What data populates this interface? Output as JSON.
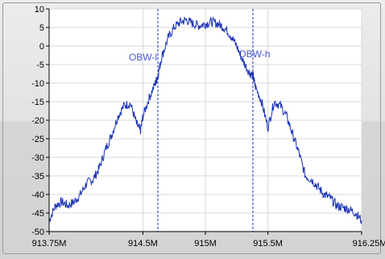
{
  "colors": {
    "plot_background": "#ffffff",
    "grid": "#d8d8d8",
    "trace": "#1a32b4",
    "markers": "#1a32b4",
    "marker_label": "#4b5ad2",
    "axis": "#000000",
    "panel": "#e3e3e3"
  },
  "chart_data": {
    "type": "line",
    "title": "",
    "xlabel": "",
    "ylabel": "",
    "x_unit_note_hidden": "",
    "xlim": [
      913.75,
      916.25
    ],
    "ylim": [
      -50,
      10
    ],
    "x_ticks": [
      913.75,
      914.5,
      915,
      915.5,
      916.25
    ],
    "x_tick_labels": [
      "913.75M",
      "914.5M",
      "915M",
      "915.5M",
      "916.25M"
    ],
    "y_ticks": [
      10,
      5,
      0,
      -5,
      -10,
      -15,
      -20,
      -25,
      -30,
      -35,
      -40,
      -45,
      -50
    ],
    "y_tick_labels": [
      "10",
      "5",
      "0",
      "-5",
      "-10",
      "-15",
      "-20",
      "-25",
      "-30",
      "-35",
      "-40",
      "-45",
      "-50"
    ],
    "grid": true,
    "legend": "none",
    "markers": [
      {
        "label": "OBW-l",
        "x": 914.62
      },
      {
        "label": "OBW-h",
        "x": 915.38
      }
    ],
    "series": [
      {
        "x": [
          913.75,
          913.8,
          913.85,
          913.9,
          913.95,
          914.0,
          914.05,
          914.1,
          914.15,
          914.2,
          914.25,
          914.3,
          914.35,
          914.4,
          914.45,
          914.48,
          914.5,
          914.55,
          914.6,
          914.62,
          914.65,
          914.7,
          914.75,
          914.8,
          914.85,
          914.9,
          914.95,
          915.0,
          915.05,
          915.1,
          915.15,
          915.2,
          915.25,
          915.3,
          915.35,
          915.38,
          915.4,
          915.45,
          915.5,
          915.55,
          915.6,
          915.65,
          915.7,
          915.75,
          915.8,
          915.85,
          915.9,
          915.95,
          916.0,
          916.05,
          916.1,
          916.15,
          916.2,
          916.25
        ],
        "values": [
          -47,
          -43,
          -42,
          -43,
          -42,
          -40,
          -37,
          -36,
          -33,
          -28,
          -24,
          -19,
          -16,
          -15.5,
          -21,
          -23,
          -19,
          -14,
          -10,
          -8,
          -3,
          2,
          5,
          6.5,
          7,
          6,
          5.5,
          6,
          6.5,
          6,
          5,
          3,
          0,
          -4,
          -7,
          -8,
          -11,
          -15,
          -22,
          -15,
          -16,
          -19,
          -24,
          -29,
          -35,
          -36,
          -38,
          -40,
          -41,
          -43,
          -43.5,
          -44,
          -45,
          -47
        ]
      }
    ]
  }
}
